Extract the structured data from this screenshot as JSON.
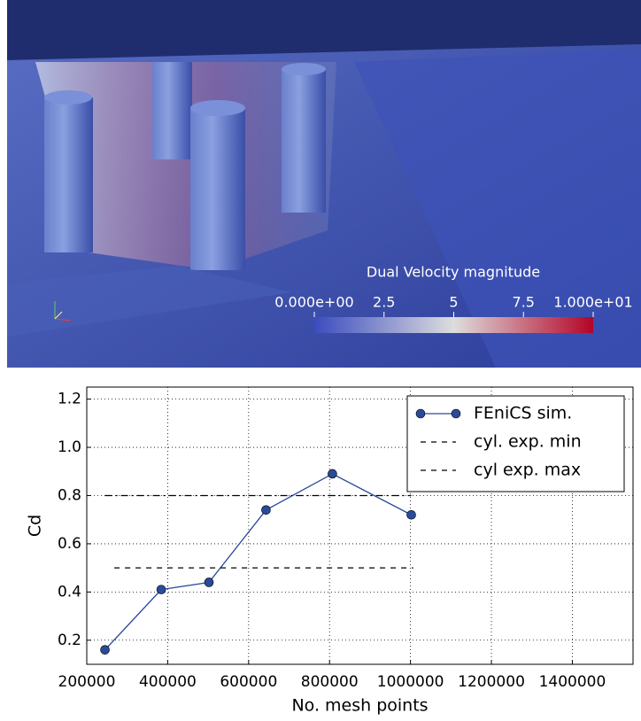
{
  "render": {
    "colorbar_title": "Dual Velocity magnitude",
    "clim": [
      0,
      10
    ],
    "colorbar_ticks": [
      {
        "value": 0,
        "label": "0.000e+00"
      },
      2.5,
      5,
      7.5,
      {
        "value": 10,
        "label": "1.000e+01"
      }
    ]
  },
  "chart_data": {
    "type": "line",
    "xlabel": "No. mesh points",
    "ylabel": "Cd",
    "xlim": [
      200000,
      1550000
    ],
    "xticks": [
      200000,
      400000,
      600000,
      800000,
      1000000,
      1200000,
      1400000
    ],
    "ylim": [
      0.1,
      1.25
    ],
    "yticks": [
      0.2,
      0.4,
      0.6,
      0.8,
      {
        "value": 1,
        "label": "1.0"
      },
      1.2
    ],
    "grid": true,
    "legend": "upper right",
    "series": [
      {
        "name": "FEniCS sim.",
        "color": "#2a4a9a",
        "marker": "circle",
        "line_style": "solid",
        "x": [
          245000,
          384000,
          502000,
          643000,
          807000,
          1002000
        ],
        "values": [
          0.16,
          0.41,
          0.44,
          0.74,
          0.89,
          0.72
        ]
      },
      {
        "name": "cyl. exp. min",
        "color": "#000000",
        "line_style": "dashed",
        "x": [
          268000,
          1007000
        ],
        "values": [
          0.5,
          0.5
        ]
      },
      {
        "name": "cyl exp. max",
        "color": "#000000",
        "line_style": "dashdot",
        "x": [
          245000,
          1002000
        ],
        "values": [
          0.8,
          0.8
        ]
      }
    ]
  }
}
